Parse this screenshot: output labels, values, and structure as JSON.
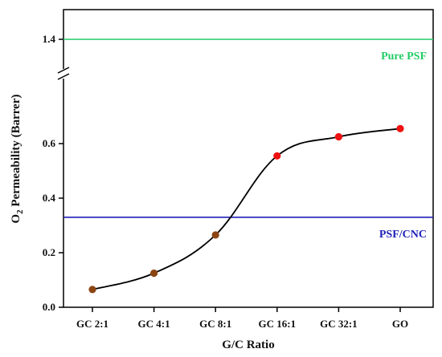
{
  "chart_data": {
    "type": "line",
    "xlabel": "G/C Ratio",
    "ylabel_main": "O",
    "ylabel_sub": "2",
    "ylabel_rest": " Permeability (Barrer)",
    "categories": [
      "GC 2:1",
      "GC 4:1",
      "GC 8:1",
      "GC 16:1",
      "GC 32:1",
      "GO"
    ],
    "series": [
      {
        "values": [
          0.065,
          0.125,
          0.265,
          0.555,
          0.625,
          0.655
        ],
        "line_color": "#000000",
        "marker_colors": [
          "#8b4513",
          "#8b4513",
          "#8b4513",
          "#ee1111",
          "#ee1111",
          "#ee1111"
        ]
      }
    ],
    "y_ticks": [
      0.0,
      0.2,
      0.4,
      0.6
    ],
    "y_tick_labels": [
      "0.0",
      "0.2",
      "0.4",
      "0.6"
    ],
    "ylim_lower": [
      0.0,
      0.75
    ],
    "y_break": true,
    "y_upper_tick": 1.4,
    "y_upper_tick_label": "1.4",
    "reference_lines": [
      {
        "label": "Pure PSF",
        "value": 1.4,
        "color": "#22cc66"
      },
      {
        "label": "PSF/CNC",
        "value": 0.33,
        "color": "#1f1fb8"
      }
    ],
    "grid": false
  }
}
